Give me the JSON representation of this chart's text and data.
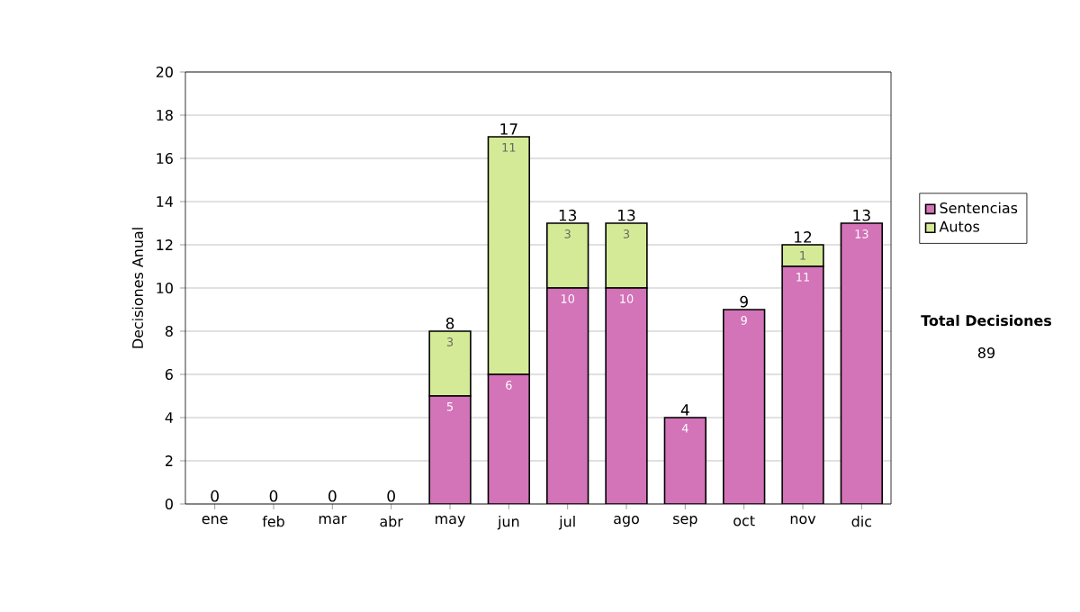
{
  "chart_data": {
    "type": "bar",
    "stacked": true,
    "ylabel": "Decisiones Anual",
    "categories": [
      "ene",
      "feb",
      "mar",
      "abr",
      "may",
      "jun",
      "jul",
      "ago",
      "sep",
      "oct",
      "nov",
      "dic"
    ],
    "series": [
      {
        "name": "Sentencias",
        "color": "#d373b8",
        "values": [
          0,
          0,
          0,
          0,
          5,
          6,
          10,
          10,
          4,
          9,
          11,
          13
        ],
        "value_labels": [
          null,
          null,
          null,
          null,
          "5",
          "6",
          "10",
          "10",
          "4",
          "9",
          "11",
          "13"
        ]
      },
      {
        "name": "Autos",
        "color": "#d5ea96",
        "values": [
          0,
          0,
          0,
          0,
          3,
          11,
          3,
          3,
          0,
          0,
          1,
          0
        ],
        "value_labels": [
          null,
          null,
          null,
          null,
          "3",
          "11",
          "3",
          "3",
          null,
          null,
          "1",
          null
        ]
      }
    ],
    "totals": [
      "0",
      "0",
      "0",
      "0",
      "8",
      "17",
      "13",
      "13",
      "4",
      "9",
      "12",
      "13"
    ],
    "ylim": [
      0,
      20
    ],
    "yticks": [
      0,
      2,
      4,
      6,
      8,
      10,
      12,
      14,
      16,
      18,
      20
    ],
    "grid": "y",
    "legend": "right",
    "annotations": [
      "Total Decisiones",
      "89"
    ]
  }
}
